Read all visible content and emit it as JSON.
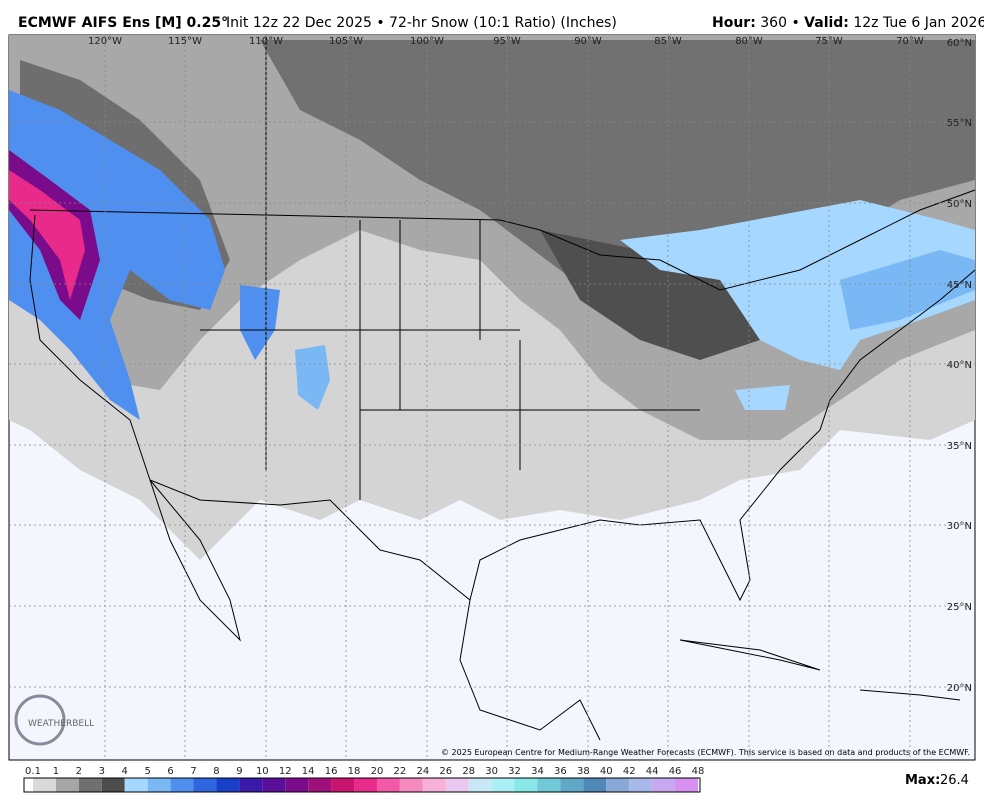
{
  "header": {
    "title": "ECMWF AIFS Ens [M] 0.25°",
    "subtitle": "Init 12z 22 Dec 2025 • 72-hr Snow (10:1 Ratio) (Inches)",
    "hour_label": "Hour:",
    "hour": "360",
    "separator": "•",
    "valid_label": "Valid:",
    "valid": "12z Tue 6 Jan 2026"
  },
  "map": {
    "lon_labels": [
      "120°W",
      "115°W",
      "110°W",
      "105°W",
      "100°W",
      "95°W",
      "90°W",
      "85°W",
      "80°W",
      "75°W",
      "70°W"
    ],
    "lat_labels": [
      "60°N",
      "55°N",
      "50°N",
      "45°N",
      "40°N",
      "35°N",
      "30°N",
      "25°N",
      "20°N"
    ],
    "credit": "© 2025 European Centre for Medium-Range Weather Forecasts (ECMWF). This service is based on data and products of the ECMWF.",
    "logo": "WEATHERBELL"
  },
  "legend": {
    "levels": [
      "0.1",
      "1",
      "2",
      "3",
      "4",
      "5",
      "6",
      "7",
      "8",
      "9",
      "10",
      "12",
      "14",
      "16",
      "18",
      "20",
      "22",
      "24",
      "26",
      "28",
      "30",
      "32",
      "34",
      "36",
      "38",
      "40",
      "42",
      "44",
      "46",
      "48"
    ],
    "colors": [
      "#ffffff",
      "#d9d9d9",
      "#a6a6a6",
      "#6f6f6f",
      "#4d4d4d",
      "#a6d8ff",
      "#7ab8f5",
      "#4f8ff0",
      "#2e66e0",
      "#1a3fc8",
      "#3a1aa8",
      "#5a0f9a",
      "#7a0c8c",
      "#a0107a",
      "#c8146e",
      "#e82a8a",
      "#f25aa8",
      "#f58ac0",
      "#f7b0d6",
      "#e8c8f0",
      "#c8e8f5",
      "#a8f0f5",
      "#88e8e8",
      "#70c8d8",
      "#60a8c8",
      "#5088b8",
      "#88a8d8",
      "#a8b8e8",
      "#c8a8f0",
      "#d890f0"
    ],
    "max_label": "Max:",
    "max": 26.4
  }
}
